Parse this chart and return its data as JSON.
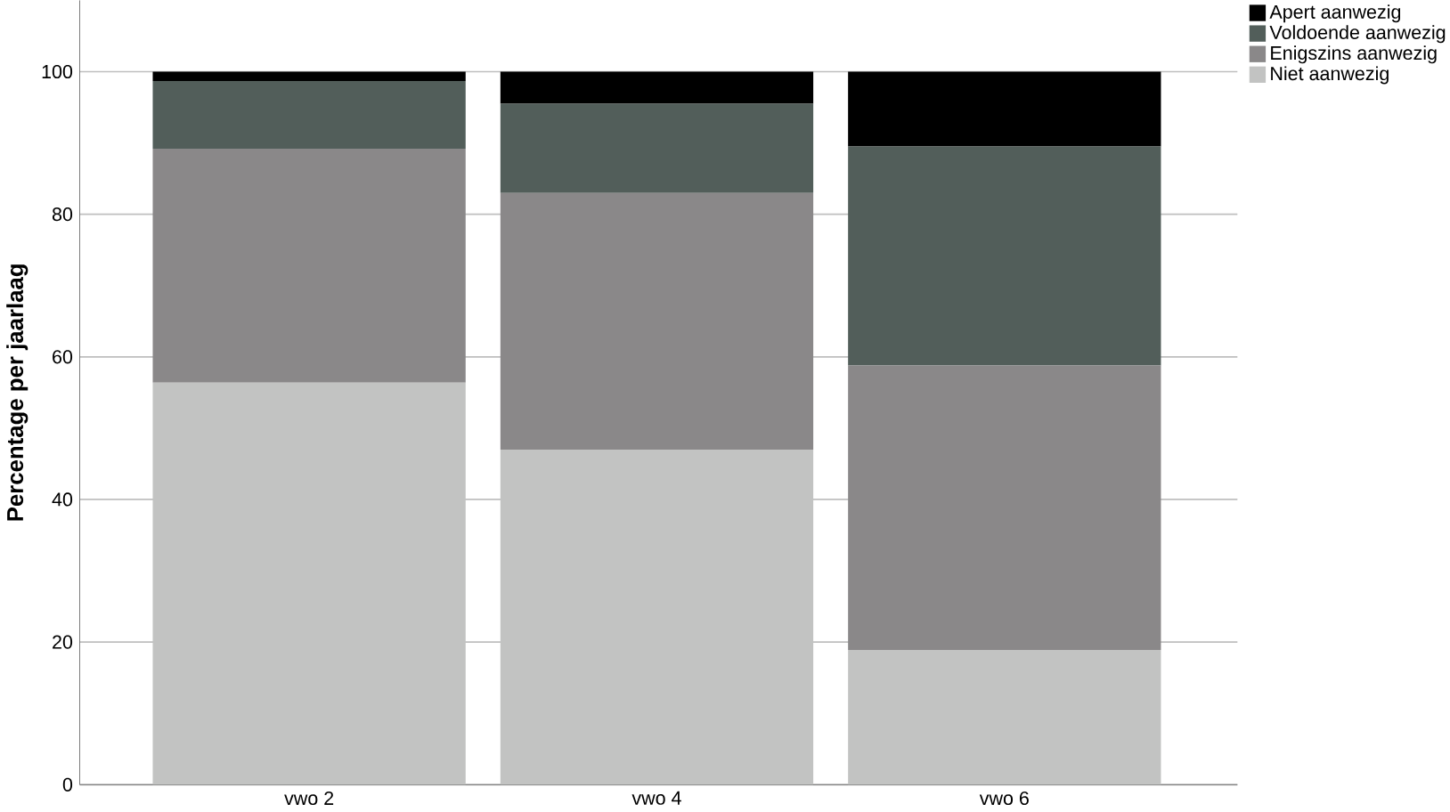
{
  "chart_data": {
    "type": "bar",
    "stacked": true,
    "ylabel": "Percentage per jaarlaag",
    "categories": [
      "vwo 2",
      "vwo 4",
      "vwo 6"
    ],
    "series": [
      {
        "name": "Niet aanwezig",
        "color": "#c2c3c2",
        "values": [
          56.4,
          47.0,
          18.9
        ]
      },
      {
        "name": "Enigszins aanwezig",
        "color": "#8a8889",
        "values": [
          32.8,
          36.0,
          39.9
        ]
      },
      {
        "name": "Voldoende aanwezig",
        "color": "#525e5a",
        "values": [
          9.5,
          12.5,
          30.7
        ]
      },
      {
        "name": "Apert aanwezig",
        "color": "#000000",
        "values": [
          1.3,
          4.5,
          10.5
        ]
      }
    ],
    "ylim": [
      0,
      110
    ],
    "yticks": [
      0,
      20,
      40,
      60,
      80,
      100
    ],
    "grid": "y",
    "legend": "top right"
  }
}
